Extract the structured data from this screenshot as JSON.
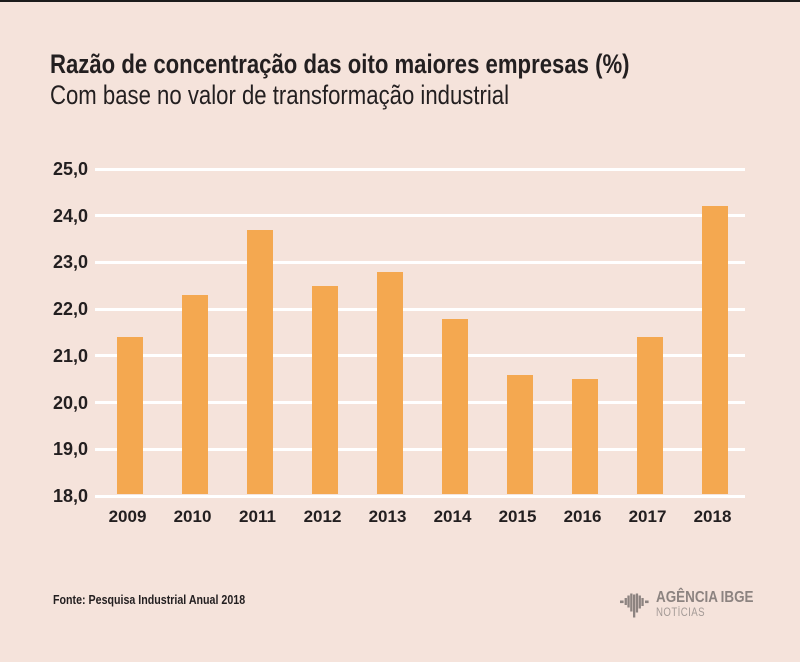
{
  "page": {
    "background_color": "#f5e3db",
    "top_border_color": "#1c1c1c",
    "text_color": "#231f20"
  },
  "chart_data": {
    "type": "bar",
    "title": "Razão de concentração das oito maiores empresas (%)",
    "subtitle": "Com base no valor de transformação industrial",
    "categories": [
      "2009",
      "2010",
      "2011",
      "2012",
      "2013",
      "2014",
      "2015",
      "2016",
      "2017",
      "2018"
    ],
    "values": [
      21.4,
      22.3,
      23.7,
      22.5,
      22.8,
      21.8,
      20.6,
      20.5,
      21.4,
      24.2
    ],
    "xlabel": "",
    "ylabel": "",
    "ylim": [
      18.0,
      25.0
    ],
    "ytick_step": 1.0,
    "ytick_labels_top_down": [
      "25,0",
      "24,0",
      "23,0",
      "22,0",
      "21,0",
      "20,0",
      "19,0",
      "18,0"
    ],
    "grid": true,
    "gridline_color": "#ffffff",
    "bar_color": "#f4a850",
    "legend": "none"
  },
  "footer": {
    "source": "Fonte: Pesquisa Industrial Anual 2018",
    "logo": {
      "icon": "ibge-bars-logo",
      "agency": "AGÊNCIA",
      "brand": "IBGE",
      "sub": "NOTÍCIAS",
      "color": "#8c8380"
    }
  }
}
